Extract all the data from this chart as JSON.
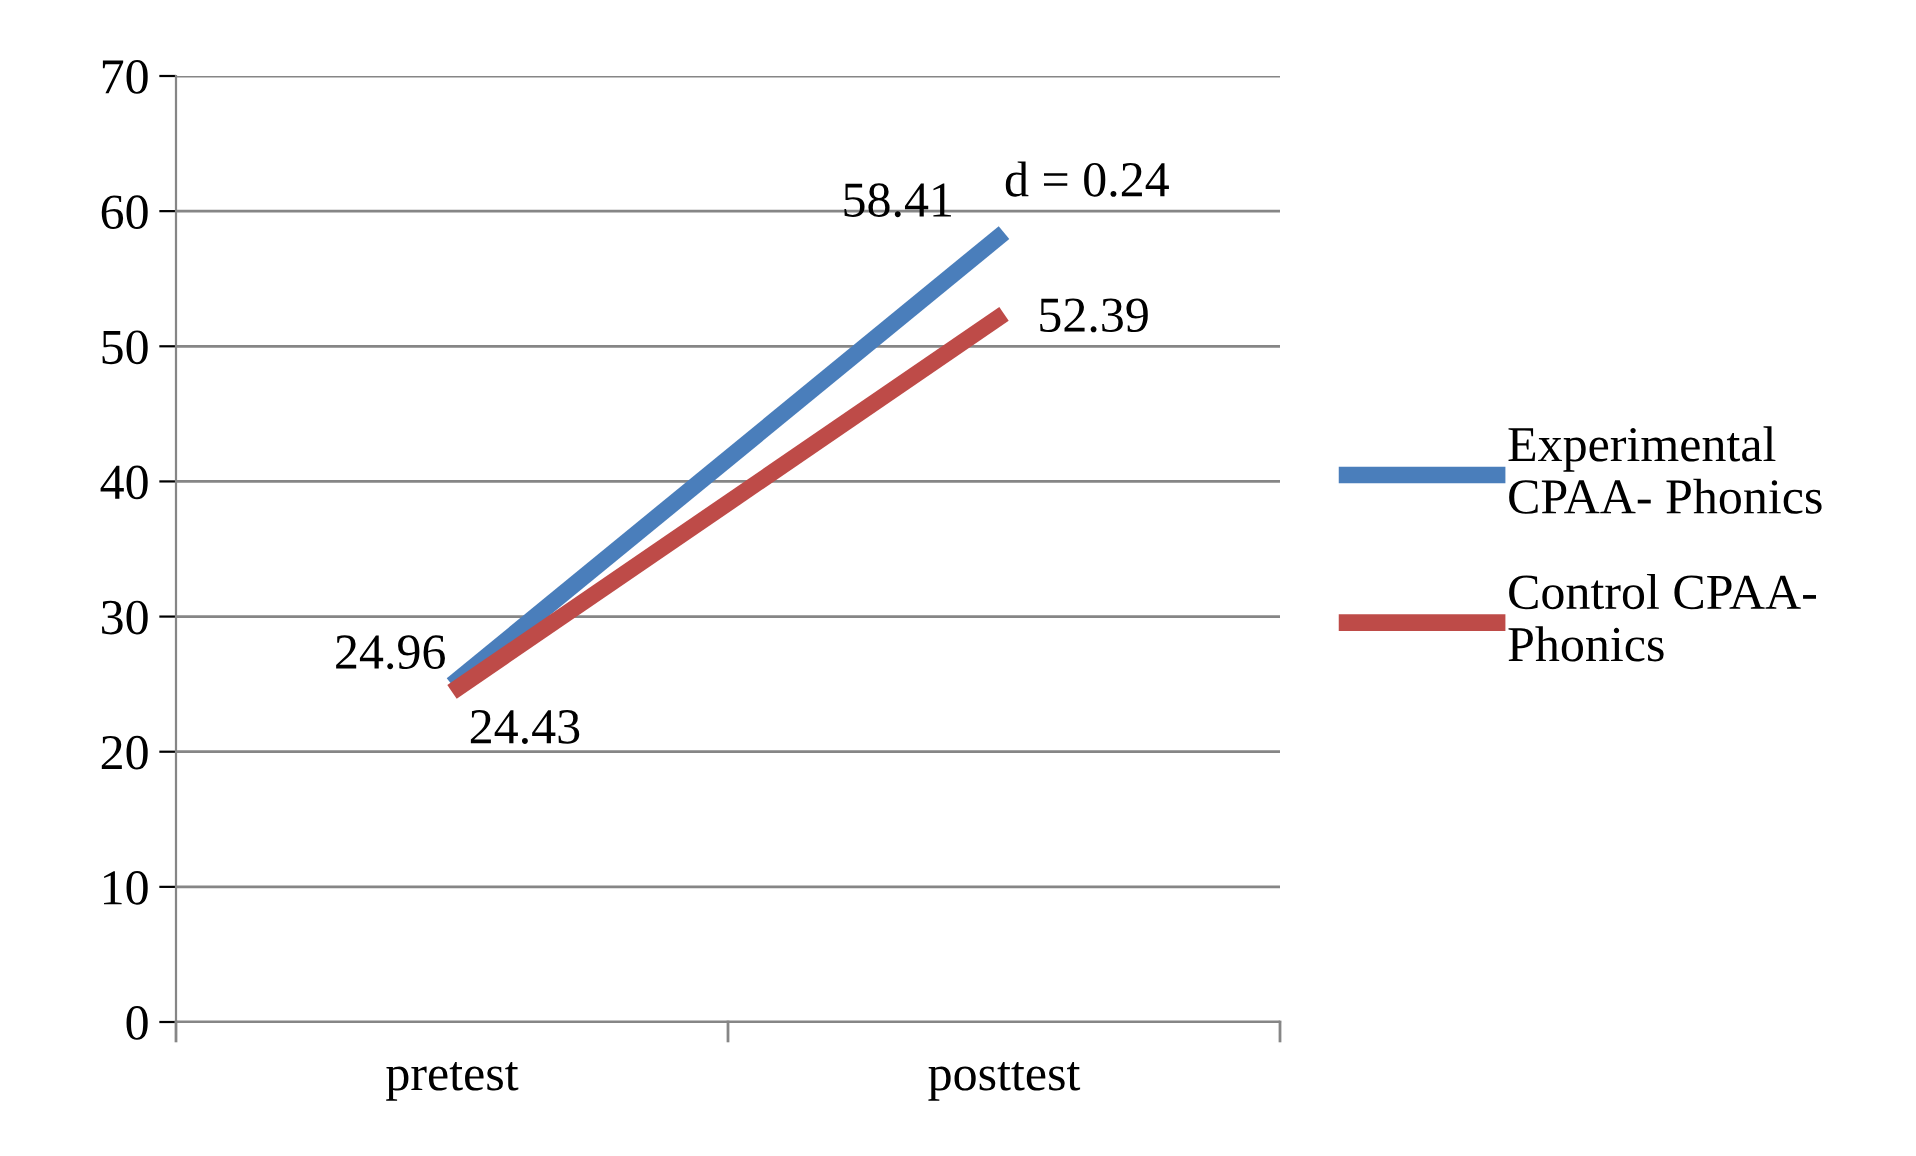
{
  "chart_data": {
    "type": "line",
    "categories": [
      "pretest",
      "posttest"
    ],
    "series": [
      {
        "name": "Experimental CPAA- Phonics",
        "color": "#4a7ebb",
        "values": [
          24.96,
          58.41
        ]
      },
      {
        "name": "Control CPAA- Phonics",
        "color": "#be4b48",
        "values": [
          24.43,
          52.39
        ]
      }
    ],
    "ylim": [
      0,
      70
    ],
    "yticks": [
      0,
      10,
      20,
      30,
      40,
      50,
      60,
      70
    ],
    "grid": "y",
    "legend": "right",
    "marker": "none",
    "line_style": "solid",
    "data_labels": true,
    "annotations": [
      "d = 0.24"
    ]
  }
}
